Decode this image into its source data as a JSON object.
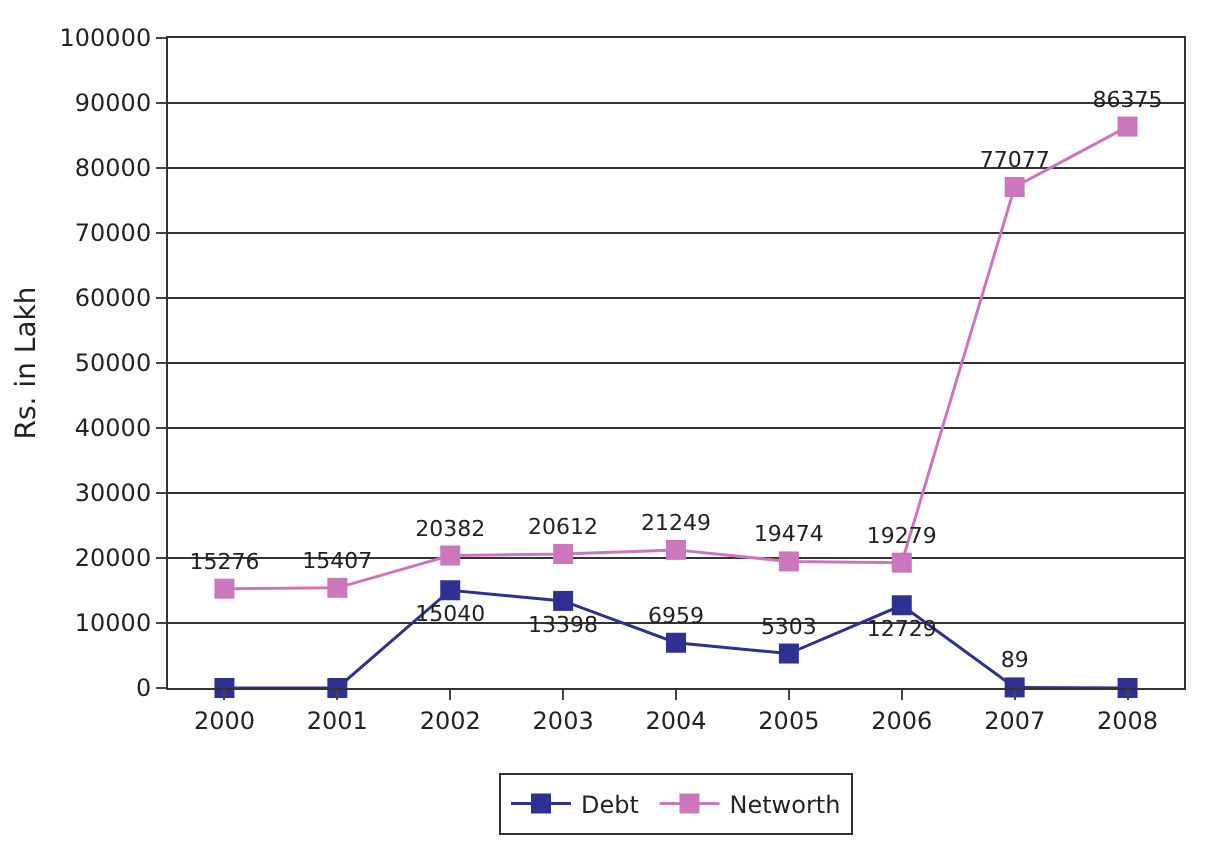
{
  "chart_data": {
    "type": "line",
    "ylabel": "Rs. in Lakh",
    "categories": [
      "2000",
      "2001",
      "2002",
      "2003",
      "2004",
      "2005",
      "2006",
      "2007",
      "2008"
    ],
    "series": [
      {
        "name": "Debt",
        "color": "#2e3192",
        "values": [
          0,
          0,
          15040,
          13398,
          6959,
          5303,
          12729,
          89,
          0
        ],
        "value_labels": [
          null,
          null,
          "15040",
          "13398",
          "6959",
          "5303",
          "12729",
          "89",
          null
        ]
      },
      {
        "name": "Networth",
        "color": "#cc77bb",
        "values": [
          15276,
          15407,
          20382,
          20612,
          21249,
          19474,
          19279,
          77077,
          86375
        ],
        "value_labels": [
          "15276",
          "15407",
          "20382",
          "20612",
          "21249",
          "19474",
          "19279",
          "77077",
          "86375"
        ]
      }
    ],
    "ylim": [
      0,
      100000
    ],
    "yticks": [
      0,
      10000,
      20000,
      30000,
      40000,
      50000,
      60000,
      70000,
      80000,
      90000,
      100000
    ],
    "grid": "y",
    "legend": "bottom",
    "marker": "square",
    "line_style": "solid"
  }
}
